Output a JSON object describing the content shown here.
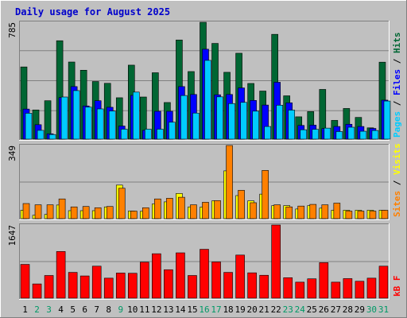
{
  "chart_data": {
    "type": "bar",
    "title": "Daily usage for August 2025",
    "categories": [
      "1",
      "2",
      "3",
      "4",
      "5",
      "6",
      "7",
      "8",
      "9",
      "10",
      "11",
      "12",
      "13",
      "14",
      "15",
      "16",
      "17",
      "18",
      "19",
      "20",
      "21",
      "22",
      "23",
      "24",
      "25",
      "26",
      "27",
      "28",
      "29",
      "30",
      "31"
    ],
    "weekend_days": [
      "2",
      "3",
      "9",
      "16",
      "17",
      "23",
      "24",
      "30",
      "31"
    ],
    "colors": {
      "hits": "#006633",
      "files": "#0000ff",
      "pages": "#00ccff",
      "visits": "#ffff00",
      "sites": "#ff8000",
      "kbytes": "#ff0000",
      "title": "#0000cc",
      "weekday_label": "#000000",
      "weekend_label": "#009966",
      "background": "#c0c0c0"
    },
    "panels": [
      {
        "name": "hits-files-pages",
        "ymax_label": "785",
        "ymax": 785,
        "side_labels": [
          {
            "text": "Pages",
            "color": "#00ccff"
          },
          {
            "text": " / ",
            "color": "#000000"
          },
          {
            "text": "Files",
            "color": "#0000ff"
          },
          {
            "text": " / ",
            "color": "#000000"
          },
          {
            "text": "Hits",
            "color": "#006633"
          }
        ],
        "series": [
          {
            "name": "Hits",
            "values": [
              485,
              196,
              258,
              661,
              518,
              463,
              387,
              375,
              278,
              497,
              283,
              446,
              246,
              666,
              454,
              785,
              643,
              449,
              577,
              374,
              323,
              704,
              291,
              150,
              185,
              334,
              126,
              206,
              146,
              76,
              517
            ]
          },
          {
            "name": "Files",
            "values": [
              202,
              97,
              36,
              279,
              353,
              223,
              258,
              214,
              88,
              294,
              59,
              187,
              187,
              353,
              300,
              604,
              298,
              300,
              344,
              260,
              229,
              382,
              244,
              92,
              94,
              71,
              85,
              100,
              85,
              72,
              262
            ]
          },
          {
            "name": "Pages",
            "values": [
              174,
              59,
              31,
              283,
              326,
              215,
              203,
              189,
              67,
              316,
              67,
              67,
              114,
              293,
              175,
              529,
              284,
              239,
              247,
              188,
              85,
              228,
              195,
              63,
              66,
              74,
              51,
              80,
              53,
              58,
              256
            ]
          }
        ]
      },
      {
        "name": "sites-visits",
        "ymax_label": "349",
        "ymax": 349,
        "side_labels": [
          {
            "text": "Sites",
            "color": "#ff8000"
          },
          {
            "text": " / ",
            "color": "#000000"
          },
          {
            "text": "Visits",
            "color": "#ffff00"
          }
        ],
        "series": [
          {
            "name": "Visits",
            "values": [
              40,
              16,
              20,
              65,
              38,
              38,
              38,
              56,
              160,
              36,
              35,
              70,
              80,
              120,
              56,
              55,
              85,
              228,
              110,
              85,
              117,
              62,
              62,
              46,
              62,
              50,
              40,
              40,
              40,
              40,
              40
            ]
          },
          {
            "name": "Sites",
            "values": [
              72,
              66,
              66,
              94,
              56,
              58,
              52,
              58,
              145,
              36,
              52,
              94,
              97,
              102,
              66,
              78,
              86,
              349,
              135,
              76,
              230,
              66,
              56,
              60,
              68,
              66,
              74,
              36,
              36,
              36,
              40
            ]
          }
        ]
      },
      {
        "name": "kbytes",
        "ymax_label": "1647",
        "ymax": 1647,
        "side_labels": [
          {
            "text": "kB F",
            "color": "#ff0000"
          }
        ],
        "series": [
          {
            "name": "kB F",
            "values": [
              760,
              320,
              510,
              1050,
              580,
              500,
              720,
              450,
              565,
              560,
              810,
              1000,
              640,
              1020,
              510,
              1100,
              815,
              580,
              970,
              570,
              515,
              1647,
              460,
              360,
              435,
              800,
              360,
              440,
              380,
              450,
              720
            ]
          }
        ]
      }
    ]
  }
}
